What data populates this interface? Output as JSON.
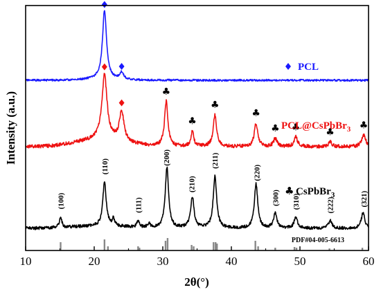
{
  "chart_data": {
    "type": "line",
    "xlabel": "2θ(°)",
    "ylabel": "Intensity (a.u.)",
    "xlim": [
      10,
      60
    ],
    "xticks": [
      "10",
      "20",
      "30",
      "40",
      "50",
      "60"
    ],
    "legend_placement": "right, beside each trace",
    "series": [
      {
        "name": "PCL",
        "color": "#1a1aff",
        "marker": "diamond",
        "label_marker": "♦",
        "peaks": [
          {
            "x": 21.5,
            "h": 1.0,
            "w": 0.35
          },
          {
            "x": 24.0,
            "h": 0.1,
            "w": 0.35
          }
        ],
        "marked_peaks": [
          21.5,
          24.0
        ]
      },
      {
        "name": "PCL@CsPbBr3",
        "color": "#ee1111",
        "marker": "club",
        "peaks": [
          {
            "x": 21.5,
            "h": 0.55,
            "w": 0.45
          },
          {
            "x": 24.0,
            "h": 0.25,
            "w": 0.4
          },
          {
            "x": 30.5,
            "h": 0.38,
            "w": 0.3
          },
          {
            "x": 34.3,
            "h": 0.13,
            "w": 0.25
          },
          {
            "x": 37.6,
            "h": 0.27,
            "w": 0.3
          },
          {
            "x": 43.6,
            "h": 0.2,
            "w": 0.3
          },
          {
            "x": 46.4,
            "h": 0.07,
            "w": 0.3
          },
          {
            "x": 49.4,
            "h": 0.08,
            "w": 0.3
          },
          {
            "x": 54.4,
            "h": 0.04,
            "w": 0.3
          },
          {
            "x": 59.3,
            "h": 0.1,
            "w": 0.35
          }
        ],
        "marked_peaks": [
          30.5,
          34.3,
          37.6,
          43.6,
          46.4,
          49.4,
          54.4,
          59.3
        ],
        "diamond_peaks": [
          21.5,
          24.0
        ]
      },
      {
        "name": "CsPbBr3",
        "label_prefix": "♣",
        "color": "#000000",
        "peaks": [
          {
            "x": 15.1,
            "h": 0.1,
            "w": 0.2
          },
          {
            "x": 21.5,
            "h": 0.4,
            "w": 0.3
          },
          {
            "x": 22.8,
            "h": 0.06,
            "w": 0.2
          },
          {
            "x": 26.4,
            "h": 0.06,
            "w": 0.2
          },
          {
            "x": 28.0,
            "h": 0.04,
            "w": 0.2
          },
          {
            "x": 30.6,
            "h": 0.55,
            "w": 0.3
          },
          {
            "x": 34.3,
            "h": 0.28,
            "w": 0.3
          },
          {
            "x": 37.6,
            "h": 0.47,
            "w": 0.3
          },
          {
            "x": 43.6,
            "h": 0.4,
            "w": 0.3
          },
          {
            "x": 46.4,
            "h": 0.13,
            "w": 0.3
          },
          {
            "x": 49.4,
            "h": 0.1,
            "w": 0.3
          },
          {
            "x": 54.4,
            "h": 0.07,
            "w": 0.3
          },
          {
            "x": 59.2,
            "h": 0.14,
            "w": 0.3
          }
        ],
        "annotations": [
          {
            "x": 15.1,
            "text": "(100)"
          },
          {
            "x": 21.5,
            "text": "(110)"
          },
          {
            "x": 26.4,
            "text": "(111)"
          },
          {
            "x": 30.5,
            "text": "(200)"
          },
          {
            "x": 34.2,
            "text": "(210)"
          },
          {
            "x": 37.6,
            "text": "(211)"
          },
          {
            "x": 43.7,
            "text": "(220)"
          },
          {
            "x": 46.4,
            "text": "(300)"
          },
          {
            "x": 49.4,
            "text": "(310)"
          },
          {
            "x": 54.4,
            "text": "(222)"
          },
          {
            "x": 59.3,
            "text": "(321)"
          }
        ]
      }
    ],
    "reference": {
      "label": "PDF#04-005-6613",
      "sticks": [
        [
          15.1,
          0.6
        ],
        [
          21.5,
          0.8
        ],
        [
          22.0,
          0.3
        ],
        [
          26.4,
          0.3
        ],
        [
          26.6,
          0.2
        ],
        [
          30.4,
          0.7
        ],
        [
          30.7,
          0.9
        ],
        [
          34.2,
          0.4
        ],
        [
          34.5,
          0.3
        ],
        [
          37.4,
          0.6
        ],
        [
          37.7,
          0.6
        ],
        [
          37.9,
          0.5
        ],
        [
          43.5,
          0.7
        ],
        [
          43.9,
          0.3
        ],
        [
          46.4,
          0.2
        ],
        [
          49.2,
          0.25
        ],
        [
          49.5,
          0.2
        ],
        [
          54.3,
          0.15
        ],
        [
          59.1,
          0.2
        ]
      ]
    }
  }
}
